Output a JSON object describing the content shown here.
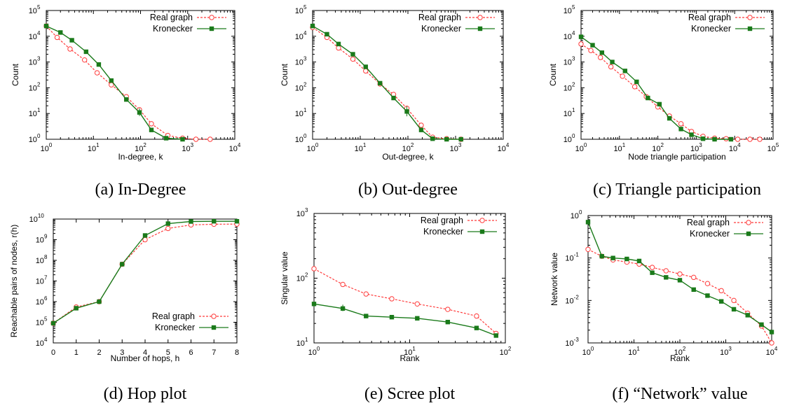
{
  "colors": {
    "real": "#ff3b3b",
    "kronecker": "#1a7a1a",
    "axis": "#000000"
  },
  "chart_data": [
    {
      "type": "line",
      "caption": "(a) In-Degree",
      "xlabel": "In-degree, k",
      "ylabel": "Count",
      "xscale": "log",
      "yscale": "log",
      "xlim": [
        1,
        10000
      ],
      "ylim": [
        1,
        100000
      ],
      "xtick_labels": [
        "10",
        "10",
        "10",
        "10",
        "10"
      ],
      "xtick_exp": [
        "0",
        "1",
        "2",
        "3",
        "4"
      ],
      "ytick_labels": [
        "10",
        "10",
        "10",
        "10",
        "10",
        "10"
      ],
      "ytick_exp": [
        "0",
        "1",
        "2",
        "3",
        "4",
        "5"
      ],
      "legend": "top-right",
      "series": [
        {
          "name": "Real graph",
          "style": "real",
          "x": [
            1,
            1.7,
            3.2,
            6.5,
            12,
            24,
            50,
            95,
            170,
            380,
            780,
            1500,
            3000
          ],
          "y": [
            25000,
            9000,
            3200,
            1200,
            380,
            130,
            45,
            14,
            4,
            1.4,
            1.1,
            1,
            1
          ]
        },
        {
          "name": "Kronecker",
          "style": "kronecker",
          "x": [
            1,
            2,
            3.5,
            7,
            13,
            24,
            50,
            95,
            170,
            350,
            780
          ],
          "y": [
            25000,
            14000,
            7000,
            2500,
            800,
            190,
            35,
            11,
            2.3,
            1.1,
            1
          ],
          "err": [
            0,
            0,
            0,
            0,
            0,
            0,
            0,
            5,
            0,
            0,
            0
          ]
        }
      ]
    },
    {
      "type": "line",
      "caption": "(b) Out-degree",
      "xlabel": "Out-degree, k",
      "ylabel": "Count",
      "xscale": "log",
      "yscale": "log",
      "xlim": [
        1,
        10000
      ],
      "ylim": [
        1,
        100000
      ],
      "xtick_labels": [
        "10",
        "10",
        "10",
        "10",
        "10"
      ],
      "xtick_exp": [
        "0",
        "1",
        "2",
        "3",
        "4"
      ],
      "ytick_labels": [
        "10",
        "10",
        "10",
        "10",
        "10",
        "10"
      ],
      "ytick_exp": [
        "0",
        "1",
        "2",
        "3",
        "4",
        "5"
      ],
      "legend": "top-right",
      "series": [
        {
          "name": "Real graph",
          "style": "real",
          "x": [
            1,
            2,
            3.5,
            7,
            13,
            26,
            50,
            95,
            190,
            330,
            650,
            1300
          ],
          "y": [
            22000,
            9000,
            3500,
            1300,
            450,
            140,
            55,
            16,
            3.5,
            1.2,
            1.05,
            1
          ]
        },
        {
          "name": "Kronecker",
          "style": "kronecker",
          "x": [
            1,
            2,
            3.5,
            7,
            13,
            26,
            50,
            95,
            190,
            330,
            650,
            1300
          ],
          "y": [
            25000,
            12000,
            5000,
            2000,
            650,
            150,
            40,
            12,
            2.3,
            1.05,
            1,
            1
          ],
          "err": [
            0,
            0,
            0,
            0,
            0,
            0,
            0,
            7,
            0,
            0,
            0,
            0
          ]
        }
      ]
    },
    {
      "type": "line",
      "caption": "(c) Triangle participation",
      "xlabel": "Node triangle participation",
      "ylabel": "Count",
      "xscale": "log",
      "yscale": "log",
      "xlim": [
        1,
        100000
      ],
      "ylim": [
        1,
        100000
      ],
      "xtick_labels": [
        "10",
        "10",
        "10",
        "10",
        "10",
        "10"
      ],
      "xtick_exp": [
        "0",
        "1",
        "2",
        "3",
        "4",
        "5"
      ],
      "ytick_labels": [
        "10",
        "10",
        "10",
        "10",
        "10",
        "10"
      ],
      "ytick_exp": [
        "0",
        "1",
        "2",
        "3",
        "4",
        "5"
      ],
      "legend": "top-right",
      "series": [
        {
          "name": "Real graph",
          "style": "real",
          "x": [
            1,
            1.8,
            3.2,
            6,
            12,
            25,
            50,
            100,
            200,
            400,
            750,
            1500,
            3000,
            6000,
            12000,
            25000,
            45000
          ],
          "y": [
            5000,
            2800,
            1500,
            650,
            280,
            110,
            45,
            18,
            8,
            4,
            2,
            1.3,
            1.1,
            1.05,
            1,
            1,
            1
          ]
        },
        {
          "name": "Kronecker",
          "style": "kronecker",
          "x": [
            1,
            2,
            3.5,
            6.5,
            14,
            28,
            55,
            110,
            200,
            400,
            750,
            1500,
            3000,
            8000
          ],
          "y": [
            9500,
            4500,
            2300,
            1000,
            450,
            170,
            40,
            23,
            6.5,
            2.5,
            1.5,
            1.05,
            1,
            1
          ]
        }
      ]
    },
    {
      "type": "line",
      "caption": "(d) Hop plot",
      "xlabel": "Number of hops, h",
      "ylabel": "Reachable pairs of nodes, r(h)",
      "xscale": "linear",
      "yscale": "log",
      "xlim": [
        0,
        8
      ],
      "ylim": [
        10000,
        10000000000
      ],
      "xtick_labels": [
        "0",
        "1",
        "2",
        "3",
        "4",
        "5",
        "6",
        "7",
        "8"
      ],
      "xtick_exp": [
        "",
        "",
        "",
        "",
        "",
        "",
        "",
        "",
        ""
      ],
      "ytick_labels": [
        "10",
        "10",
        "10",
        "10",
        "10",
        "10",
        "10"
      ],
      "ytick_exp": [
        "4",
        "5",
        "6",
        "7",
        "8",
        "9",
        "10"
      ],
      "legend": "bottom-right",
      "series": [
        {
          "name": "Real graph",
          "style": "real",
          "x": [
            0,
            1,
            2,
            3,
            4,
            5,
            6,
            7,
            8
          ],
          "y": [
            90000,
            550000,
            1000000,
            65000000,
            1000000000,
            3500000000,
            5200000000,
            5600000000,
            5700000000
          ]
        },
        {
          "name": "Kronecker",
          "style": "kronecker",
          "x": [
            0,
            1,
            2,
            3,
            4,
            5,
            6,
            7,
            8
          ],
          "y": [
            90000,
            480000,
            1000000,
            65000000,
            1600000000,
            6000000000,
            7600000000,
            7800000000,
            7800000000
          ]
        }
      ]
    },
    {
      "type": "line",
      "caption": "(e) Scree plot",
      "xlabel": "Rank",
      "ylabel": "Singular value",
      "xscale": "log",
      "yscale": "log",
      "xlim": [
        1,
        100
      ],
      "ylim": [
        10,
        1000
      ],
      "xtick_labels": [
        "10",
        "10",
        "10"
      ],
      "xtick_exp": [
        "0",
        "1",
        "2"
      ],
      "ytick_labels": [
        "10",
        "10",
        "10"
      ],
      "ytick_exp": [
        "1",
        "2",
        "3"
      ],
      "legend": "top-right",
      "series": [
        {
          "name": "Real graph",
          "style": "real",
          "x": [
            1,
            2,
            3.5,
            6.5,
            12,
            25,
            50,
            80
          ],
          "y": [
            140,
            80,
            57,
            48,
            40,
            33,
            26,
            14
          ]
        },
        {
          "name": "Kronecker",
          "style": "kronecker",
          "x": [
            1,
            2,
            3.5,
            6.5,
            12,
            25,
            50,
            80
          ],
          "y": [
            40,
            34,
            26,
            25,
            24,
            21,
            17,
            13
          ],
          "err": [
            0,
            5,
            0,
            0,
            0,
            0,
            0,
            0
          ]
        }
      ]
    },
    {
      "type": "line",
      "caption": "(f) “Network” value",
      "xlabel": "Rank",
      "ylabel": "Network value",
      "xscale": "log",
      "yscale": "log",
      "xlim": [
        1,
        10000
      ],
      "ylim": [
        0.001,
        1
      ],
      "xtick_labels": [
        "10",
        "10",
        "10",
        "10",
        "10"
      ],
      "xtick_exp": [
        "0",
        "1",
        "2",
        "3",
        "4"
      ],
      "ytick_labels": [
        "10",
        "10",
        "10",
        "10"
      ],
      "ytick_exp": [
        "-3",
        "-2",
        "-1",
        "0"
      ],
      "legend": "top-right",
      "series": [
        {
          "name": "Real graph",
          "style": "real",
          "x": [
            1,
            2,
            3.5,
            7,
            13,
            25,
            50,
            100,
            200,
            400,
            800,
            1500,
            3000,
            6000,
            10000
          ],
          "y": [
            0.16,
            0.11,
            0.09,
            0.08,
            0.072,
            0.06,
            0.05,
            0.042,
            0.035,
            0.025,
            0.017,
            0.01,
            0.005,
            0.0025,
            0.001
          ]
        },
        {
          "name": "Kronecker",
          "style": "kronecker",
          "x": [
            1,
            2,
            3.5,
            7,
            13,
            25,
            50,
            100,
            200,
            400,
            800,
            1500,
            3000,
            6000,
            10000
          ],
          "y": [
            0.7,
            0.11,
            0.1,
            0.095,
            0.085,
            0.045,
            0.035,
            0.03,
            0.018,
            0.013,
            0.0095,
            0.0062,
            0.0045,
            0.0027,
            0.0018
          ]
        }
      ]
    }
  ]
}
